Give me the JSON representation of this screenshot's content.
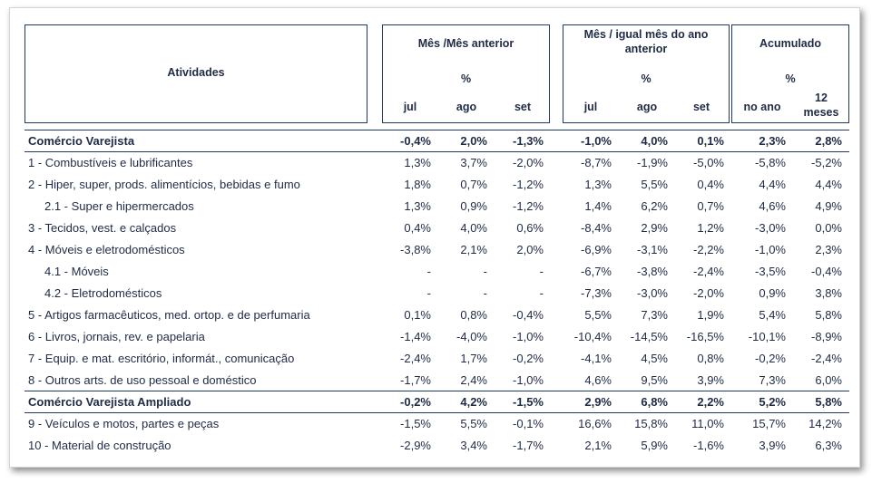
{
  "header": {
    "atividades": "Atividades",
    "group1": {
      "title": "Mês /Mês anterior",
      "unit": "%",
      "cols": [
        "jul",
        "ago",
        "set"
      ]
    },
    "group2": {
      "title_line1": "Mês / igual mês do ano",
      "title_line2": "anterior",
      "unit": "%",
      "cols": [
        "jul",
        "ago",
        "set"
      ]
    },
    "group3": {
      "title": "Acumulado",
      "unit": "%",
      "col1": "no ano",
      "col2_line1": "12",
      "col2_line2": "meses"
    }
  },
  "rows": [
    {
      "label": "Comércio Varejista",
      "bold": true,
      "indent": false,
      "values": [
        "-0,4%",
        "2,0%",
        "-1,3%",
        "-1,0%",
        "4,0%",
        "0,1%",
        "2,3%",
        "2,8%"
      ]
    },
    {
      "label": "1 - Combustíveis e lubrificantes",
      "bold": false,
      "indent": false,
      "values": [
        "1,3%",
        "3,7%",
        "-2,0%",
        "-8,7%",
        "-1,9%",
        "-5,0%",
        "-5,8%",
        "-5,2%"
      ]
    },
    {
      "label": "2 - Hiper, super, prods. alimentícios, bebidas e fumo",
      "bold": false,
      "indent": false,
      "values": [
        "1,8%",
        "0,7%",
        "-1,2%",
        "1,3%",
        "5,5%",
        "0,4%",
        "4,4%",
        "4,4%"
      ]
    },
    {
      "label": "2.1 - Super e hipermercados",
      "bold": false,
      "indent": true,
      "values": [
        "1,3%",
        "0,9%",
        "-1,2%",
        "1,4%",
        "6,2%",
        "0,7%",
        "4,6%",
        "4,9%"
      ]
    },
    {
      "label": "3 - Tecidos, vest. e calçados",
      "bold": false,
      "indent": false,
      "values": [
        "0,4%",
        "4,0%",
        "0,6%",
        "-8,4%",
        "2,9%",
        "1,2%",
        "-3,0%",
        "0,0%"
      ]
    },
    {
      "label": "4 - Móveis e eletrodomésticos",
      "bold": false,
      "indent": false,
      "values": [
        "-3,8%",
        "2,1%",
        "2,0%",
        "-6,9%",
        "-3,1%",
        "-2,2%",
        "-1,0%",
        "2,3%"
      ]
    },
    {
      "label": "4.1 - Móveis",
      "bold": false,
      "indent": true,
      "values": [
        "-",
        "-",
        "-",
        "-6,7%",
        "-3,8%",
        "-2,4%",
        "-3,5%",
        "-0,4%"
      ]
    },
    {
      "label": "4.2 - Eletrodomésticos",
      "bold": false,
      "indent": true,
      "values": [
        "-",
        "-",
        "-",
        "-7,3%",
        "-3,0%",
        "-2,0%",
        "0,9%",
        "3,8%"
      ]
    },
    {
      "label": "5 - Artigos farmacêuticos, med. ortop. e de perfumaria",
      "bold": false,
      "indent": false,
      "values": [
        "0,1%",
        "0,8%",
        "-0,4%",
        "5,5%",
        "7,3%",
        "1,9%",
        "5,4%",
        "5,8%"
      ]
    },
    {
      "label": "6 - Livros, jornais, rev. e papelaria",
      "bold": false,
      "indent": false,
      "values": [
        "-1,4%",
        "-4,0%",
        "-1,0%",
        "-10,4%",
        "-14,5%",
        "-16,5%",
        "-10,1%",
        "-8,9%"
      ]
    },
    {
      "label": "7 - Equip. e mat. escritório, informát., comunicação",
      "bold": false,
      "indent": false,
      "values": [
        "-2,4%",
        "1,7%",
        "-0,2%",
        "-4,1%",
        "4,5%",
        "0,8%",
        "-0,2%",
        "-2,4%"
      ]
    },
    {
      "label": "8 - Outros arts. de uso pessoal e doméstico",
      "bold": false,
      "indent": false,
      "values": [
        "-1,7%",
        "2,4%",
        "-1,0%",
        "4,6%",
        "9,5%",
        "3,9%",
        "7,3%",
        "6,0%"
      ]
    },
    {
      "label": "Comércio Varejista Ampliado",
      "bold": true,
      "indent": false,
      "values": [
        "-0,2%",
        "4,2%",
        "-1,5%",
        "2,9%",
        "6,8%",
        "2,2%",
        "5,2%",
        "5,8%"
      ]
    },
    {
      "label": "9 - Veículos e motos, partes e peças",
      "bold": false,
      "indent": false,
      "values": [
        "-1,5%",
        "5,5%",
        "-0,1%",
        "16,6%",
        "15,8%",
        "11,0%",
        "15,7%",
        "14,2%"
      ]
    },
    {
      "label": "10 - Material de construção",
      "bold": false,
      "indent": false,
      "values": [
        "-2,9%",
        "3,4%",
        "-1,7%",
        "2,1%",
        "5,9%",
        "-1,6%",
        "3,9%",
        "6,3%"
      ]
    }
  ]
}
